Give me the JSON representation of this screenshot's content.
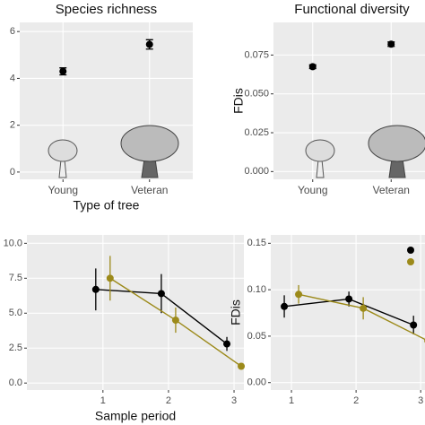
{
  "chart_data": [
    {
      "type": "scatter",
      "title": "Species richness",
      "xlabel": "Type of tree",
      "categories": [
        "Young",
        "Veteran"
      ],
      "series": [
        {
          "color": "#000000",
          "values": [
            4.3,
            5.45
          ],
          "errors": [
            0.15,
            0.2
          ]
        }
      ],
      "ylim": [
        -0.31,
        6.39
      ],
      "yticks": [
        0,
        2,
        4,
        6
      ],
      "grid": true
    },
    {
      "type": "scatter",
      "title": "Functional diversity",
      "ylabel": "FDis",
      "categories": [
        "Young",
        "Veteran"
      ],
      "series": [
        {
          "color": "#000000",
          "values": [
            0.0675,
            0.082
          ],
          "errors": [
            0.0012,
            0.0014
          ]
        }
      ],
      "ylim": [
        -0.005,
        0.096
      ],
      "yticks": [
        {
          "value": 0,
          "label": "0.000"
        },
        {
          "value": 0.025,
          "label": "0.025"
        },
        {
          "value": 0.05,
          "label": "0.050"
        },
        {
          "value": 0.075,
          "label": "0.075"
        }
      ],
      "grid": true
    },
    {
      "type": "line",
      "xlabel": "Sample period",
      "x": [
        1,
        2,
        3
      ],
      "series": [
        {
          "color": "#000000",
          "values": [
            6.7,
            6.4,
            2.8
          ],
          "errors": [
            1.5,
            1.4,
            0.5
          ]
        },
        {
          "color": "#9c8a1a",
          "values": [
            7.5,
            4.5,
            1.2
          ],
          "errors": [
            1.6,
            0.9,
            0.1
          ]
        }
      ],
      "xlim": [
        -0.16,
        3.15
      ],
      "xticks": [
        1,
        2,
        3
      ],
      "ylim": [
        -0.5,
        10.6
      ],
      "yticks": [
        {
          "value": 0,
          "label": "0.0"
        },
        {
          "value": 2.5,
          "label": "2.5"
        },
        {
          "value": 5,
          "label": "5.0"
        },
        {
          "value": 7.5,
          "label": "7.5"
        },
        {
          "value": 10,
          "label": "10.0"
        }
      ],
      "grid": true
    },
    {
      "type": "line",
      "ylabel": "FDis",
      "x": [
        1,
        2,
        3
      ],
      "series": [
        {
          "color": "#000000",
          "values": [
            0.082,
            0.09,
            0.062
          ],
          "errors": [
            0.012,
            0.008,
            0.01
          ]
        },
        {
          "color": "#9c8a1a",
          "values": [
            0.095,
            0.08,
            0.045
          ],
          "errors": [
            0.01,
            0.012,
            0.01
          ]
        }
      ],
      "xlim": [
        0.68,
        3.15
      ],
      "xticks": [
        1,
        2,
        3
      ],
      "ylim": [
        -0.008,
        0.159
      ],
      "yticks": [
        {
          "value": 0,
          "label": "0.00"
        },
        {
          "value": 0.05,
          "label": "0.05"
        },
        {
          "value": 0.1,
          "label": "0.10"
        },
        {
          "value": 0.15,
          "label": "0.15"
        }
      ],
      "grid": true
    }
  ]
}
